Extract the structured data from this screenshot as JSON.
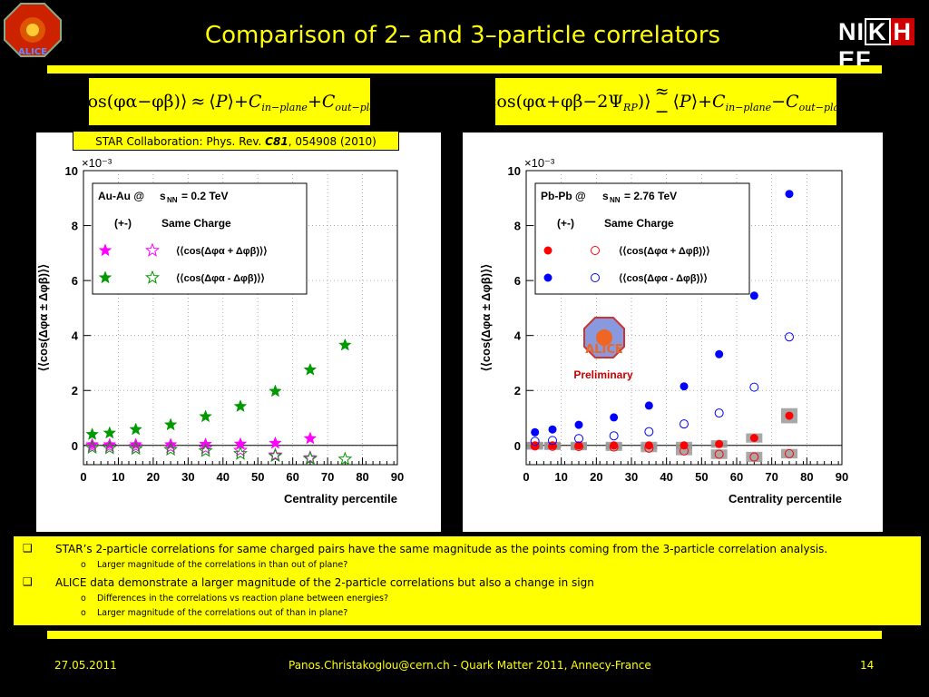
{
  "slide": {
    "title": "Comparison of 2– and 3–particle correlators",
    "logo_text": "ALICE",
    "institute_logo": "NIKHEF",
    "formula_left": {
      "cos_phi_a_minus_phi_b": "cos(φα−φβ)",
      "approx": "≈",
      "P": "P",
      "C_in": "+C",
      "C_in_sub": "in−plane",
      "C_out": "+C",
      "C_out_sub": "out−plane"
    },
    "formula_right": {
      "cos_term": "cos(φα+φβ−2Ψ",
      "psi_sub": "RP",
      "approx": "≈ −",
      "P": "P",
      "C_in": "+C",
      "C_in_sub": "in−plane",
      "C_out": "−C",
      "C_out_sub": "out−plane"
    },
    "star_reference": {
      "prefix": "STAR Collaboration: Phys. Rev. ",
      "volume": "C81",
      "suffix": ", 054908 (2010)"
    },
    "preliminary_label": "Preliminary",
    "alice_watermark": "ALICE",
    "bullets": [
      {
        "text": "STAR’s 2-particle correlations for same charged pairs have the same magnitude as the points coming from the 3-particle correlation analysis.",
        "sub": [
          "Larger magnitude of the correlations in than out of plane?"
        ]
      },
      {
        "text": "ALICE data demonstrate a larger magnitude of the 2-particle correlations but also a change in sign",
        "sub": [
          "Differences in the correlations vs reaction plane between energies?",
          "Larger magnitude of the correlations out of than in plane?"
        ]
      }
    ],
    "bullet_marker": "❑",
    "sub_marker": "o",
    "footer": {
      "date": "27.05.2011",
      "center": "Panos.Christakoglou@cern.ch - Quark Matter 2011, Annecy-France",
      "page": "14"
    },
    "colors": {
      "background": "#000000",
      "accent": "#ffff00",
      "star_magenta": "#ff00ff",
      "star_green": "#009900",
      "alice_red": "#ff0000",
      "alice_blue": "#0000ff"
    }
  },
  "chart_data": [
    {
      "type": "scatter",
      "panel": "STAR",
      "xlabel": "Centrality percentile",
      "ylabel": "⟨⟨cos(Δφα ± Δφβ)⟩⟩",
      "y_multiplier": "×10⁻³",
      "xlim": [
        0,
        90
      ],
      "ylim": [
        -0.7,
        10
      ],
      "x_ticks": [
        "0",
        "10",
        "20",
        "30",
        "40",
        "50",
        "60",
        "70",
        "80",
        "90"
      ],
      "y_ticks": [
        "0",
        "2",
        "4",
        "6",
        "8",
        "10"
      ],
      "legend": {
        "system": "Au-Au @",
        "sqrt_s_label": "s",
        "sqrt_s_sub": "NN",
        "energy": "= 0.2 TeV",
        "col1": "(+-)",
        "col2": "Same Charge",
        "row1": "⟨⟨cos(Δφα + Δφβ)⟩⟩",
        "row2": "⟨⟨cos(Δφα - Δφβ)⟩⟩"
      },
      "series": [
        {
          "marker": "filled-star",
          "color": "#ff00ff",
          "x": [
            2.5,
            7.5,
            15,
            25,
            35,
            45,
            55,
            65
          ],
          "y": [
            0.03,
            0.03,
            0.03,
            0.03,
            0.04,
            0.05,
            0.08,
            0.25
          ]
        },
        {
          "marker": "open-star",
          "color": "#ff00ff",
          "x": [
            2.5,
            7.5,
            15,
            25,
            35,
            45,
            55,
            65
          ],
          "y": [
            -0.02,
            -0.03,
            -0.04,
            -0.06,
            -0.1,
            -0.18,
            -0.35,
            -0.45
          ]
        },
        {
          "marker": "filled-star",
          "color": "#009900",
          "x": [
            2.5,
            7.5,
            15,
            25,
            35,
            45,
            55,
            65,
            75
          ],
          "y": [
            0.4,
            0.45,
            0.58,
            0.75,
            1.05,
            1.42,
            1.97,
            2.75,
            3.65
          ]
        },
        {
          "marker": "open-star",
          "color": "#009900",
          "x": [
            2.5,
            7.5,
            15,
            25,
            35,
            45,
            55,
            65,
            75
          ],
          "y": [
            -0.08,
            -0.1,
            -0.12,
            -0.15,
            -0.2,
            -0.3,
            -0.38,
            -0.48,
            -0.5
          ]
        }
      ]
    },
    {
      "type": "scatter",
      "panel": "ALICE",
      "xlabel": "Centrality percentile",
      "ylabel": "⟨⟨cos(Δφα ± Δφβ)⟩⟩",
      "y_multiplier": "×10⁻³",
      "xlim": [
        0,
        90
      ],
      "ylim": [
        -0.7,
        10
      ],
      "x_ticks": [
        "0",
        "10",
        "20",
        "30",
        "40",
        "50",
        "60",
        "70",
        "80",
        "90"
      ],
      "y_ticks": [
        "0",
        "2",
        "4",
        "6",
        "8",
        "10"
      ],
      "legend": {
        "system": "Pb-Pb @",
        "sqrt_s_label": "s",
        "sqrt_s_sub": "NN",
        "energy": "= 2.76 TeV",
        "col1": "(+-)",
        "col2": "Same Charge",
        "row1": "⟨⟨cos(Δφα + Δφβ)⟩⟩",
        "row2": "⟨⟨cos(Δφα - Δφβ)⟩⟩"
      },
      "series": [
        {
          "marker": "filled-circle",
          "color": "#ff0000",
          "x": [
            2.5,
            7.5,
            15,
            25,
            35,
            45,
            55,
            65,
            75
          ],
          "y": [
            0.0,
            0.0,
            0.0,
            0.0,
            0.0,
            0.0,
            0.05,
            0.27,
            1.08
          ],
          "syst": true
        },
        {
          "marker": "open-circle",
          "color": "#ff0000",
          "x": [
            2.5,
            7.5,
            15,
            25,
            35,
            45,
            55,
            65,
            75
          ],
          "y": [
            -0.02,
            -0.03,
            -0.04,
            -0.06,
            -0.1,
            -0.2,
            -0.32,
            -0.42,
            -0.3
          ],
          "syst": true
        },
        {
          "marker": "filled-circle",
          "color": "#0000ff",
          "x": [
            2.5,
            7.5,
            15,
            25,
            35,
            45,
            55,
            65,
            75
          ],
          "y": [
            0.48,
            0.58,
            0.75,
            1.02,
            1.45,
            2.15,
            3.32,
            5.45,
            9.15
          ]
        },
        {
          "marker": "open-circle",
          "color": "#0000ff",
          "x": [
            2.5,
            7.5,
            15,
            25,
            35,
            45,
            55,
            65,
            75
          ],
          "y": [
            0.15,
            0.18,
            0.25,
            0.35,
            0.5,
            0.78,
            1.18,
            2.12,
            3.95
          ]
        }
      ]
    }
  ]
}
